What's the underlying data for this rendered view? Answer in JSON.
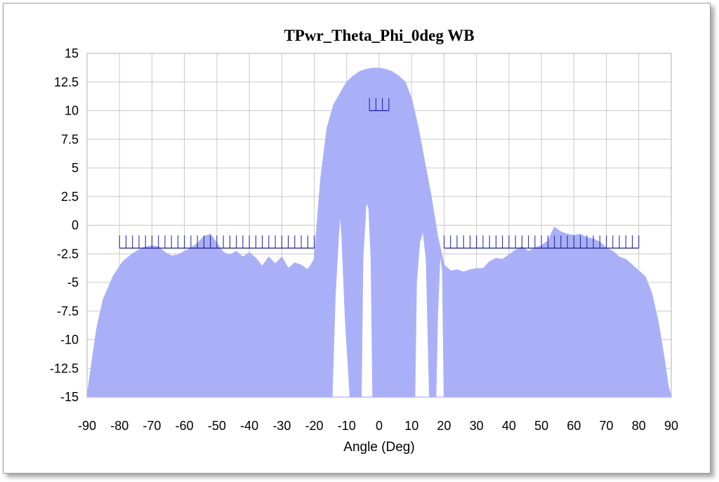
{
  "chart_data": {
    "type": "area",
    "title": "TPwr_Theta_Phi_0deg WB",
    "xlabel": "Angle (Deg)",
    "ylabel": "",
    "xlim": [
      -90,
      90
    ],
    "ylim": [
      -15,
      15
    ],
    "xticks": [
      "-90",
      "-80",
      "-70",
      "-60",
      "-50",
      "-40",
      "-30",
      "-20",
      "-10",
      "0",
      "10",
      "20",
      "30",
      "40",
      "50",
      "60",
      "70",
      "80",
      "90"
    ],
    "yticks": [
      "15",
      "12.5",
      "10",
      "7.5",
      "5",
      "2.5",
      "0",
      "-2.5",
      "-5",
      "-7.5",
      "-10",
      "-12.5",
      "-15"
    ],
    "grid": true,
    "series_color": "#aab0f8",
    "mask_color": "#1a1aa0",
    "envelope": {
      "name": "",
      "x": [
        -90,
        -89,
        -87,
        -85,
        -82,
        -79,
        -76,
        -73,
        -70,
        -68,
        -66,
        -64,
        -62,
        -60,
        -58,
        -56,
        -54,
        -52,
        -50,
        -48,
        -46,
        -44,
        -42,
        -40,
        -38,
        -36,
        -34,
        -32,
        -30,
        -28,
        -26,
        -24,
        -22,
        -20,
        -18,
        -16,
        -14,
        -12,
        -10,
        -8,
        -6,
        -4,
        -2,
        0,
        2,
        4,
        6,
        8,
        10,
        12,
        14,
        16,
        18,
        20,
        22,
        24,
        26,
        28,
        30,
        32,
        34,
        36,
        38,
        40,
        42,
        44,
        46,
        48,
        50,
        52,
        54,
        56,
        58,
        60,
        62,
        64,
        66,
        68,
        70,
        72,
        74,
        76,
        78,
        80,
        82,
        84,
        86,
        88,
        89,
        90
      ],
      "y": [
        -15,
        -13,
        -9,
        -6.5,
        -4.5,
        -3.2,
        -2.5,
        -2,
        -1.8,
        -1.9,
        -2.4,
        -2.7,
        -2.6,
        -2.3,
        -2,
        -1.6,
        -1,
        -0.8,
        -1.6,
        -2.4,
        -2.6,
        -2.3,
        -2.8,
        -2.4,
        -2.9,
        -3.6,
        -2.8,
        -3.4,
        -2.8,
        -3.8,
        -3.3,
        -3.5,
        -3.9,
        -3,
        4,
        8.5,
        10.5,
        11.5,
        12.5,
        13,
        13.4,
        13.6,
        13.7,
        13.7,
        13.6,
        13.4,
        13,
        12.5,
        11,
        8.5,
        5.5,
        2.5,
        -1,
        -3.5,
        -4,
        -3.9,
        -4.1,
        -3.9,
        -3.8,
        -3.8,
        -3.2,
        -2.9,
        -3,
        -2.6,
        -2.2,
        -1.9,
        -2.3,
        -2,
        -1.8,
        -1.4,
        -0.2,
        -0.6,
        -0.8,
        -0.9,
        -0.8,
        -1.1,
        -1.2,
        -1.5,
        -2,
        -2.3,
        -2.8,
        -3,
        -3.5,
        -4,
        -4.5,
        -6,
        -8.5,
        -12,
        -14,
        -15
      ]
    },
    "mask_limits": [
      {
        "x_start": -80,
        "x_end": -20,
        "y": -2
      },
      {
        "x_start": 20,
        "x_end": 80,
        "y": -2
      },
      {
        "x_start": -3,
        "x_end": 3,
        "y": 10
      }
    ]
  }
}
